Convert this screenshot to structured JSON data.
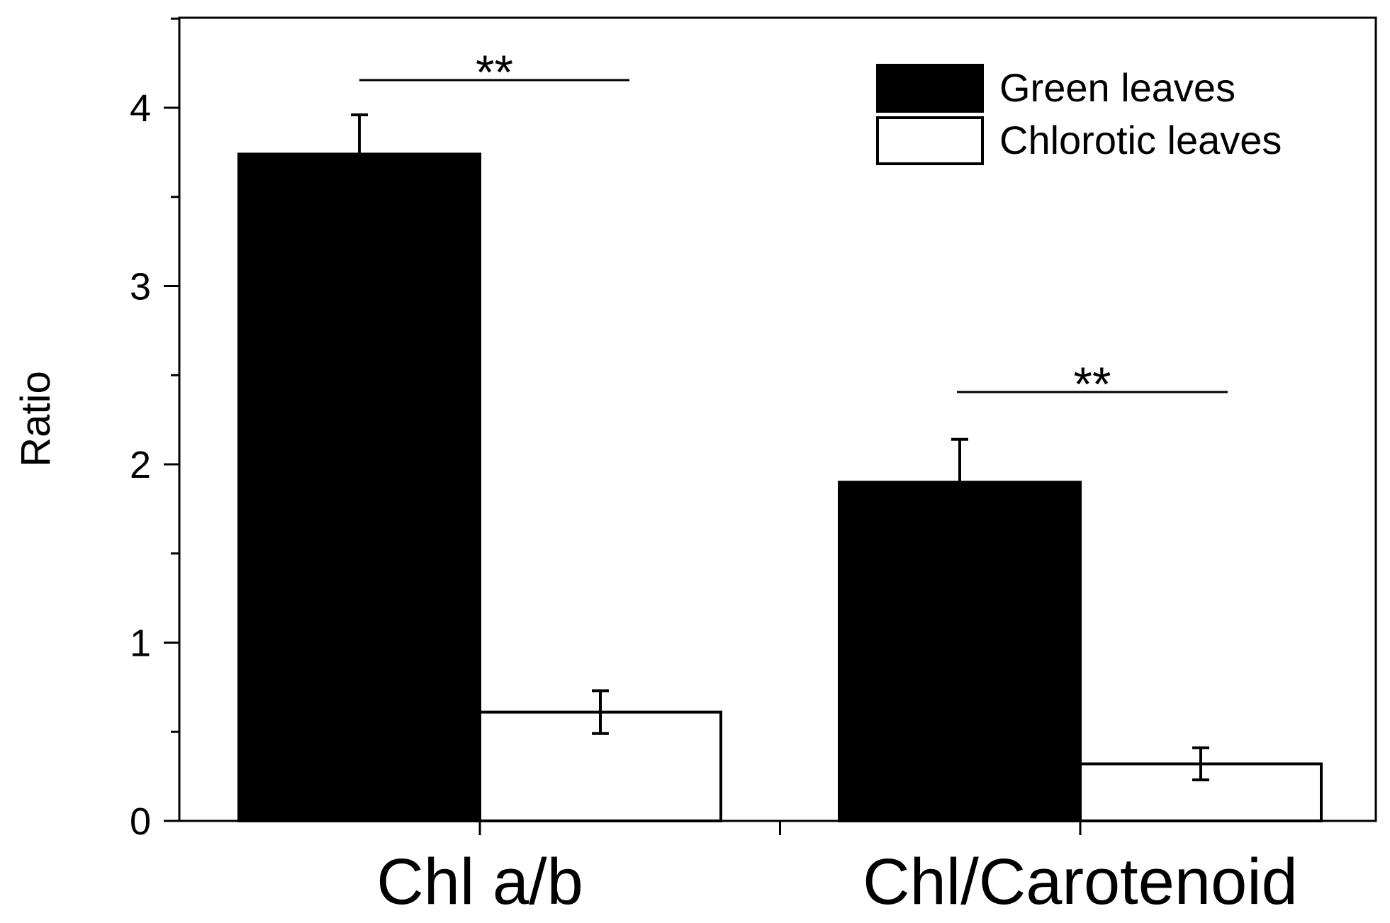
{
  "chart_data": {
    "type": "bar",
    "ylabel": "Ratio",
    "ylim": [
      0,
      4.5
    ],
    "yticks": [
      "0",
      "1",
      "2",
      "3",
      "4"
    ],
    "categories": [
      "Chl a/b",
      "Chl/Carotenoid"
    ],
    "series": [
      {
        "name": "Green leaves",
        "color": "#000000",
        "values": [
          3.74,
          1.9
        ],
        "errors": [
          0.22,
          0.24
        ]
      },
      {
        "name": "Chlorotic leaves",
        "color": "#ffffff",
        "values": [
          0.61,
          0.32
        ],
        "errors": [
          0.12,
          0.09
        ]
      }
    ],
    "significance": [
      "**",
      "**"
    ],
    "legend_position": "top-right"
  }
}
